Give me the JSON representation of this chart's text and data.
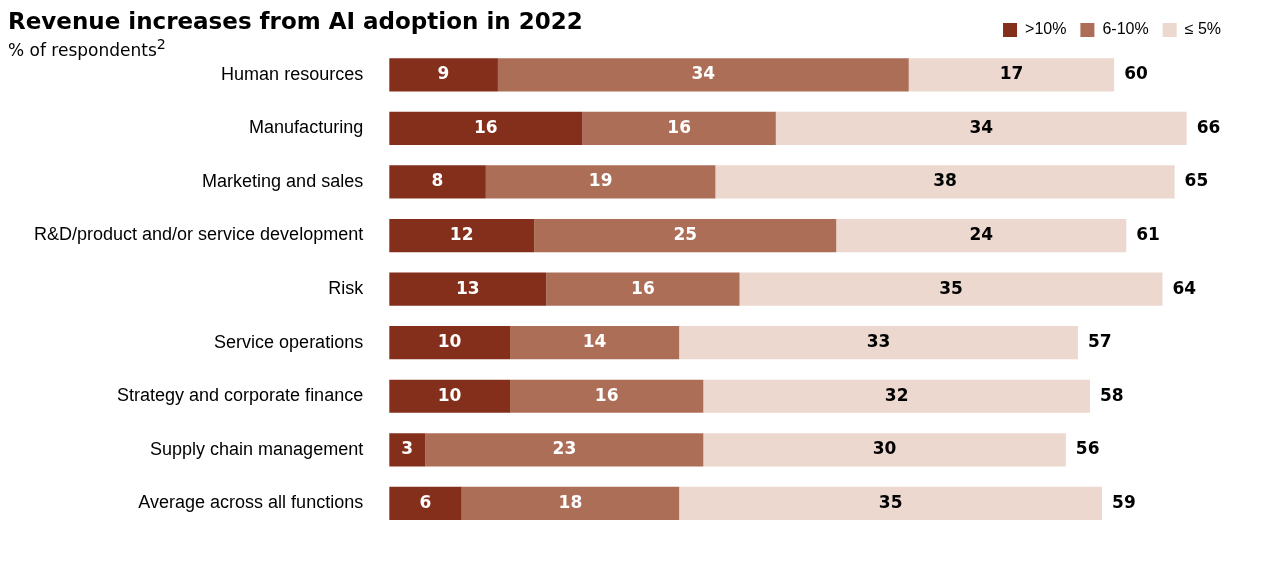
{
  "chart_data": {
    "type": "bar",
    "orientation": "horizontal",
    "stacked": true,
    "title": "Revenue increases from AI adoption in 2022",
    "subtitle": "% of respondents$^{2}$",
    "categories": [
      "Human resources",
      "Manufacturing",
      "Marketing and sales",
      "R&D/product and/or service development",
      "Risk",
      "Service operations",
      "Strategy and corporate finance",
      "Supply chain management",
      "Average across all functions"
    ],
    "series": [
      {
        "name": ">10%",
        "color": "#832f1b",
        "values": [
          9,
          16,
          8,
          12,
          13,
          10,
          10,
          3,
          6
        ]
      },
      {
        "name": "6-10%",
        "color": "#ad6e57",
        "values": [
          34,
          16,
          19,
          25,
          16,
          14,
          16,
          23,
          18
        ]
      },
      {
        "name": "≤ 5%",
        "color": "#ecd8cf",
        "values": [
          17,
          34,
          38,
          24,
          35,
          33,
          32,
          30,
          35
        ]
      }
    ],
    "totals": [
      "60",
      "66",
      "65",
      "61",
      "64",
      "57",
      "58",
      "56",
      "59"
    ],
    "data_labels": true,
    "legend": "top right",
    "grid": false
  }
}
